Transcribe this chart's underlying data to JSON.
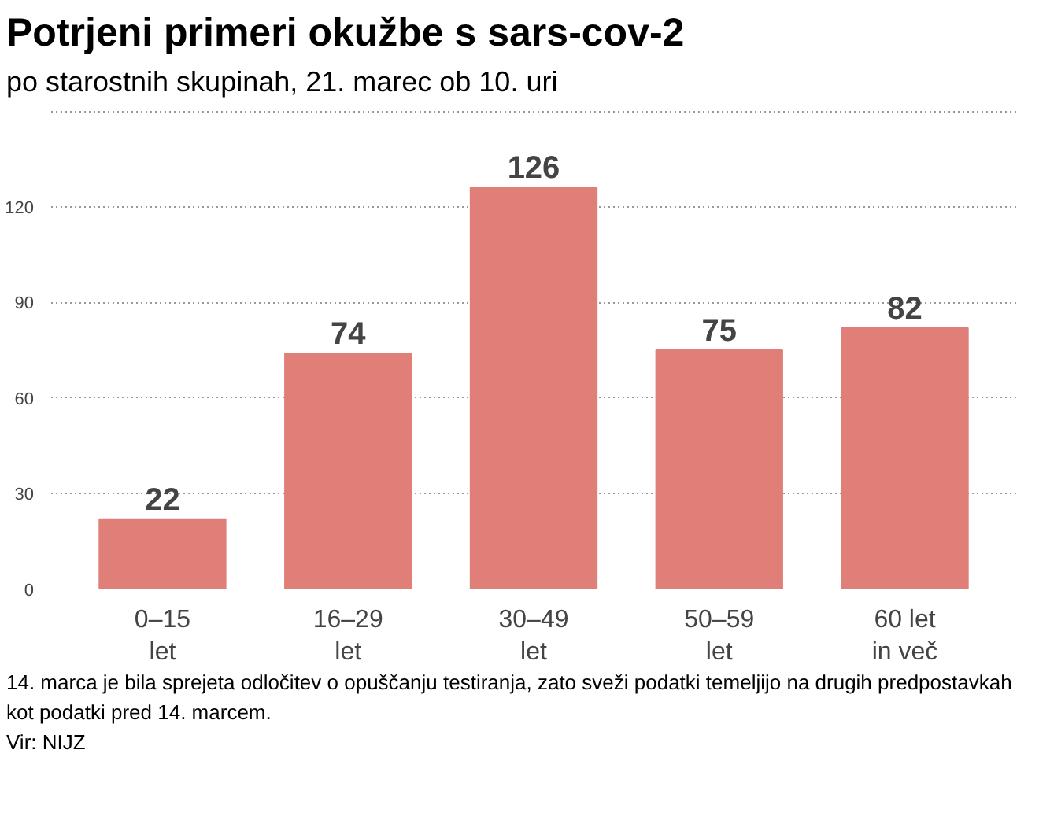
{
  "chart_data": {
    "type": "bar",
    "title": "Potrjeni primeri okužbe s sars-cov-2",
    "subtitle": "po starostnih skupinah, 21. marec ob 10. uri",
    "categories": [
      "0–15\nlet",
      "16–29\nlet",
      "30–49\nlet",
      "50–59\nlet",
      "60 let\nin več"
    ],
    "values": [
      22,
      74,
      126,
      75,
      82
    ],
    "color": "#e07f78",
    "ylim": [
      0,
      150
    ],
    "yticks": [
      0,
      30,
      60,
      90,
      120,
      {
        "value": 150,
        "label": null
      }
    ],
    "grid": "y",
    "data_labels": true,
    "annotations": [
      "14. marca je bila sprejeta odločitev o opuščanju testiranja, zato sveži podatki temeljijo na drugih predpostavkah kot podatki pred 14. marcem.",
      "Vir: NIJZ"
    ]
  }
}
